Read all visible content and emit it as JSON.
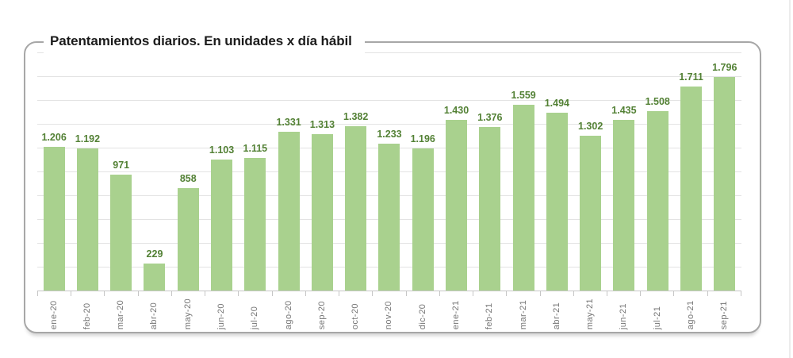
{
  "chart": {
    "title": "Patentamientos diarios. En unidades x día hábil"
  },
  "chart_data": {
    "type": "bar",
    "title": "Patentamientos diarios. En unidades x día hábil",
    "categories": [
      "ene-20",
      "feb-20",
      "mar-20",
      "abr-20",
      "may-20",
      "jun-20",
      "jul-20",
      "ago-20",
      "sep-20",
      "oct-20",
      "nov-20",
      "dic-20",
      "ene-21",
      "feb-21",
      "mar-21",
      "abr-21",
      "may-21",
      "jun-21",
      "jul-21",
      "ago-21",
      "sep-21"
    ],
    "values": [
      1206,
      1192,
      971,
      229,
      858,
      1103,
      1115,
      1331,
      1313,
      1382,
      1233,
      1196,
      1430,
      1376,
      1559,
      1494,
      1302,
      1435,
      1508,
      1711,
      1796
    ],
    "value_labels": [
      "1.206",
      "1.192",
      "971",
      "229",
      "858",
      "1.103",
      "1.115",
      "1.331",
      "1.313",
      "1.382",
      "1.233",
      "1.196",
      "1.430",
      "1.376",
      "1.559",
      "1.494",
      "1.302",
      "1.435",
      "1.508",
      "1.711",
      "1.796"
    ],
    "xlabel": "",
    "ylabel": "",
    "ylim": [
      0,
      2000
    ],
    "gridline_step": 200,
    "grid": true,
    "y_axis_labels_visible": false,
    "legend": "none",
    "bar_color": "#a9d18e",
    "value_label_color": "#538135",
    "axis_label_color": "#757575",
    "gridline_color": "#e3e3e3",
    "card_border_color": "#a7a7a7"
  }
}
